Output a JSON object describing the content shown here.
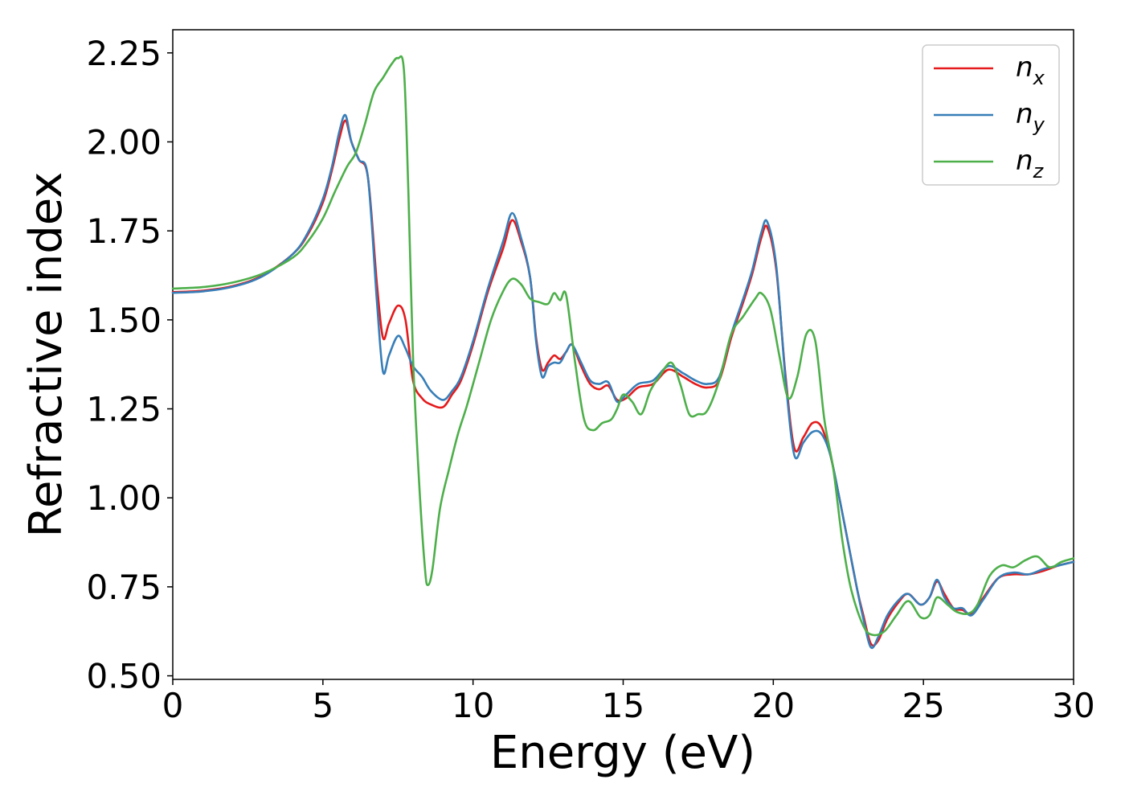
{
  "chart_data": {
    "type": "line",
    "title": "",
    "xlabel": "Energy (eV)",
    "ylabel": "Refractive index",
    "xlim": [
      0,
      30
    ],
    "ylim": [
      0.49,
      2.315
    ],
    "xticks": [
      0,
      5,
      10,
      15,
      20,
      25,
      30
    ],
    "xtick_labels": [
      "0",
      "5",
      "10",
      "15",
      "20",
      "25",
      "30"
    ],
    "yticks": [
      0.5,
      0.75,
      1.0,
      1.25,
      1.5,
      1.75,
      2.0,
      2.25
    ],
    "ytick_labels": [
      "0.50",
      "0.75",
      "1.00",
      "1.25",
      "1.50",
      "1.75",
      "2.00",
      "2.25"
    ],
    "grid": false,
    "legend_position": "top-right",
    "series": [
      {
        "name": "n",
        "subscript": "x",
        "color": "#e41a1c",
        "x": [
          0,
          1,
          2,
          3,
          4,
          4.5,
          5,
          5.3,
          5.55,
          5.75,
          5.95,
          6.2,
          6.5,
          6.8,
          7.0,
          7.2,
          7.5,
          7.75,
          8.0,
          8.3,
          8.6,
          9.0,
          9.3,
          9.6,
          10.0,
          10.5,
          11.0,
          11.3,
          11.6,
          11.9,
          12.1,
          12.3,
          12.5,
          12.7,
          12.9,
          13.1,
          13.3,
          13.6,
          13.9,
          14.2,
          14.5,
          14.8,
          15.1,
          15.5,
          16.0,
          16.5,
          17.0,
          17.4,
          17.8,
          18.2,
          18.6,
          19.0,
          19.3,
          19.6,
          19.8,
          20.1,
          20.4,
          20.7,
          21.0,
          21.3,
          21.6,
          21.9,
          22.2,
          22.5,
          22.8,
          23.0,
          23.25,
          23.5,
          23.8,
          24.2,
          24.5,
          24.9,
          25.2,
          25.45,
          25.7,
          26.0,
          26.3,
          26.6,
          27.0,
          27.5,
          28.0,
          28.5,
          29.0,
          29.5,
          30.0
        ],
        "y": [
          1.578,
          1.582,
          1.595,
          1.625,
          1.685,
          1.74,
          1.83,
          1.92,
          2.01,
          2.06,
          2.0,
          1.95,
          1.9,
          1.6,
          1.45,
          1.49,
          1.54,
          1.5,
          1.33,
          1.28,
          1.262,
          1.255,
          1.29,
          1.33,
          1.43,
          1.58,
          1.7,
          1.78,
          1.72,
          1.62,
          1.45,
          1.36,
          1.38,
          1.4,
          1.39,
          1.41,
          1.43,
          1.37,
          1.32,
          1.305,
          1.315,
          1.275,
          1.28,
          1.31,
          1.32,
          1.36,
          1.34,
          1.32,
          1.31,
          1.33,
          1.45,
          1.55,
          1.63,
          1.73,
          1.76,
          1.64,
          1.35,
          1.14,
          1.17,
          1.21,
          1.2,
          1.12,
          1.0,
          0.87,
          0.74,
          0.67,
          0.59,
          0.6,
          0.66,
          0.71,
          0.73,
          0.7,
          0.72,
          0.765,
          0.73,
          0.69,
          0.685,
          0.675,
          0.72,
          0.775,
          0.785,
          0.785,
          0.795,
          0.81,
          0.82
        ]
      },
      {
        "name": "n",
        "subscript": "y",
        "color": "#377eb8",
        "x": [
          0,
          1,
          2,
          3,
          4,
          4.5,
          5,
          5.3,
          5.55,
          5.75,
          5.95,
          6.2,
          6.5,
          6.8,
          7.0,
          7.2,
          7.5,
          7.75,
          8.0,
          8.3,
          8.6,
          9.0,
          9.3,
          9.6,
          10.0,
          10.5,
          11.0,
          11.3,
          11.6,
          11.9,
          12.1,
          12.3,
          12.5,
          12.7,
          12.9,
          13.1,
          13.3,
          13.6,
          13.9,
          14.2,
          14.5,
          14.8,
          15.1,
          15.5,
          16.0,
          16.5,
          17.0,
          17.4,
          17.8,
          18.2,
          18.6,
          19.0,
          19.3,
          19.6,
          19.8,
          20.1,
          20.4,
          20.7,
          21.0,
          21.3,
          21.6,
          21.9,
          22.2,
          22.5,
          22.8,
          23.0,
          23.25,
          23.5,
          23.8,
          24.2,
          24.5,
          24.9,
          25.2,
          25.45,
          25.7,
          26.0,
          26.3,
          26.6,
          27.0,
          27.5,
          28.0,
          28.5,
          29.0,
          29.5,
          30.0
        ],
        "y": [
          1.576,
          1.58,
          1.593,
          1.623,
          1.685,
          1.745,
          1.84,
          1.93,
          2.03,
          2.075,
          2.0,
          1.95,
          1.9,
          1.55,
          1.355,
          1.4,
          1.455,
          1.42,
          1.37,
          1.34,
          1.3,
          1.275,
          1.3,
          1.34,
          1.44,
          1.59,
          1.72,
          1.8,
          1.73,
          1.62,
          1.44,
          1.34,
          1.37,
          1.38,
          1.38,
          1.41,
          1.43,
          1.38,
          1.33,
          1.32,
          1.325,
          1.27,
          1.29,
          1.32,
          1.33,
          1.37,
          1.35,
          1.33,
          1.32,
          1.34,
          1.46,
          1.56,
          1.64,
          1.745,
          1.775,
          1.65,
          1.34,
          1.12,
          1.155,
          1.185,
          1.18,
          1.12,
          1.0,
          0.87,
          0.74,
          0.66,
          0.58,
          0.61,
          0.67,
          0.715,
          0.73,
          0.7,
          0.72,
          0.77,
          0.72,
          0.69,
          0.69,
          0.67,
          0.715,
          0.775,
          0.79,
          0.785,
          0.8,
          0.81,
          0.82
        ]
      },
      {
        "name": "n",
        "subscript": "z",
        "color": "#4daf4a",
        "x": [
          0,
          1,
          2,
          3,
          4,
          4.5,
          5,
          5.4,
          5.8,
          6.1,
          6.4,
          6.7,
          7.0,
          7.3,
          7.5,
          7.7,
          7.85,
          8.0,
          8.2,
          8.4,
          8.5,
          8.65,
          8.9,
          9.2,
          9.5,
          9.8,
          10.2,
          10.6,
          11.0,
          11.3,
          11.6,
          11.9,
          12.2,
          12.5,
          12.7,
          12.9,
          13.1,
          13.4,
          13.7,
          14.0,
          14.3,
          14.6,
          14.8,
          15.0,
          15.3,
          15.6,
          15.9,
          16.2,
          16.6,
          16.9,
          17.2,
          17.5,
          17.8,
          18.2,
          18.6,
          19.0,
          19.4,
          19.6,
          19.9,
          20.2,
          20.5,
          20.8,
          21.1,
          21.4,
          21.7,
          22.0,
          22.3,
          22.6,
          23.0,
          23.3,
          23.7,
          24.1,
          24.5,
          24.9,
          25.2,
          25.45,
          25.8,
          26.1,
          26.5,
          26.8,
          27.2,
          27.6,
          28.0,
          28.4,
          28.8,
          29.2,
          29.6,
          30.0
        ],
        "y": [
          1.588,
          1.592,
          1.605,
          1.63,
          1.675,
          1.72,
          1.785,
          1.86,
          1.93,
          1.97,
          2.05,
          2.14,
          2.18,
          2.22,
          2.235,
          2.2,
          1.85,
          1.4,
          1.05,
          0.8,
          0.755,
          0.8,
          0.97,
          1.08,
          1.18,
          1.26,
          1.38,
          1.5,
          1.58,
          1.615,
          1.6,
          1.56,
          1.55,
          1.545,
          1.575,
          1.555,
          1.57,
          1.38,
          1.22,
          1.19,
          1.21,
          1.22,
          1.25,
          1.29,
          1.27,
          1.235,
          1.3,
          1.34,
          1.38,
          1.32,
          1.235,
          1.235,
          1.245,
          1.33,
          1.46,
          1.51,
          1.56,
          1.575,
          1.53,
          1.4,
          1.28,
          1.34,
          1.46,
          1.44,
          1.22,
          1.08,
          0.88,
          0.74,
          0.64,
          0.615,
          0.625,
          0.67,
          0.71,
          0.665,
          0.67,
          0.72,
          0.7,
          0.68,
          0.675,
          0.7,
          0.78,
          0.81,
          0.805,
          0.825,
          0.835,
          0.805,
          0.82,
          0.83
        ]
      }
    ]
  }
}
